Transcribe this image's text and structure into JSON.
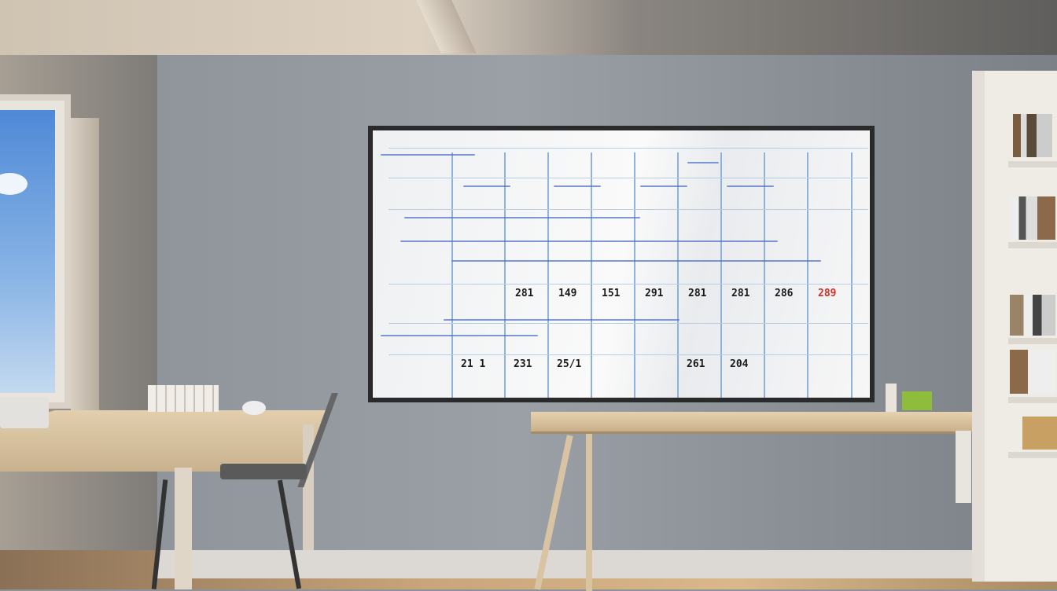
{
  "whiteboard": {
    "row_numbers": [
      "281",
      "149",
      "151",
      "291",
      "281",
      "281",
      "286",
      "289"
    ],
    "bottom_numbers": [
      "21 1",
      "231",
      "25/1",
      "",
      "",
      "261",
      "204",
      ""
    ],
    "accent_red": "#d0302a",
    "ink_blue": "#4a6fc4"
  }
}
